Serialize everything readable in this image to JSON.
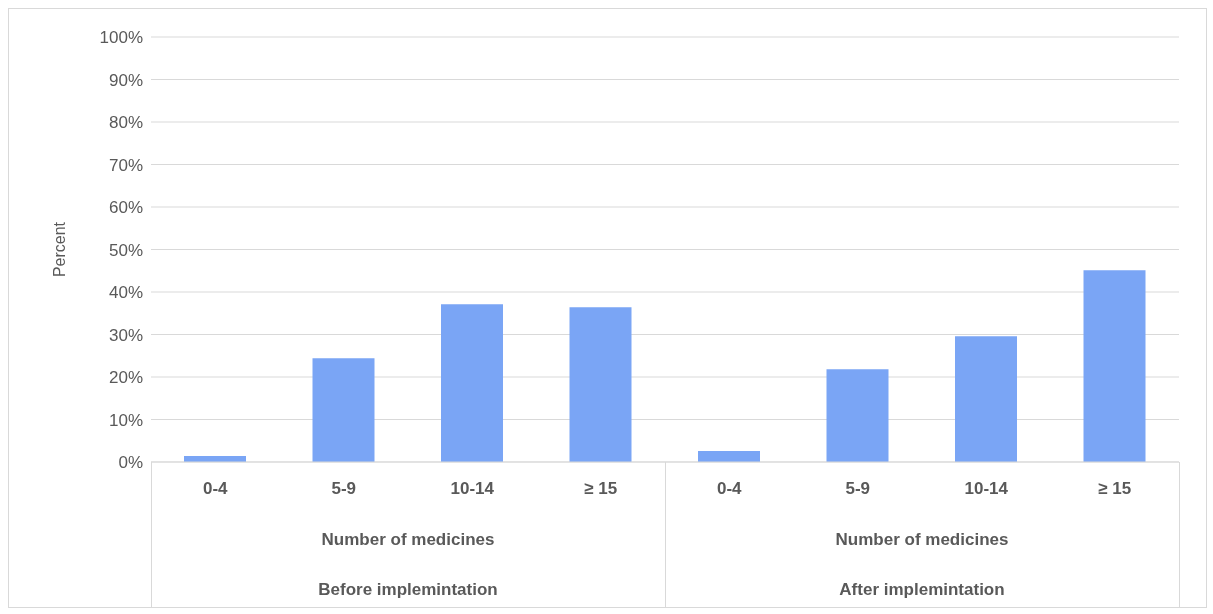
{
  "chart_data": {
    "type": "bar",
    "ylabel": "Percent",
    "categories": [
      "0-4",
      "5-9",
      "10-14",
      "≥ 15",
      "0-4",
      "5-9",
      "10-14",
      "≥ 15"
    ],
    "values": [
      1.4,
      24.4,
      37.1,
      36.4,
      2.6,
      21.8,
      29.6,
      45.1
    ],
    "color": "#7aa5f5",
    "ylim": [
      0,
      100
    ],
    "yticks": [
      {
        "value": 0,
        "label": "0%"
      },
      {
        "value": 10,
        "label": "10%"
      },
      {
        "value": 20,
        "label": "20%"
      },
      {
        "value": 30,
        "label": "30%"
      },
      {
        "value": 40,
        "label": "40%"
      },
      {
        "value": 50,
        "label": "50%"
      },
      {
        "value": 60,
        "label": "60%"
      },
      {
        "value": 70,
        "label": "70%"
      },
      {
        "value": 80,
        "label": "80%"
      },
      {
        "value": 90,
        "label": "90%"
      },
      {
        "value": 100,
        "label": "100%"
      }
    ],
    "grid": "y",
    "annotations": [
      "Number of medicines",
      "Before implemintation",
      "Number of medicines",
      "After implemintation"
    ]
  }
}
